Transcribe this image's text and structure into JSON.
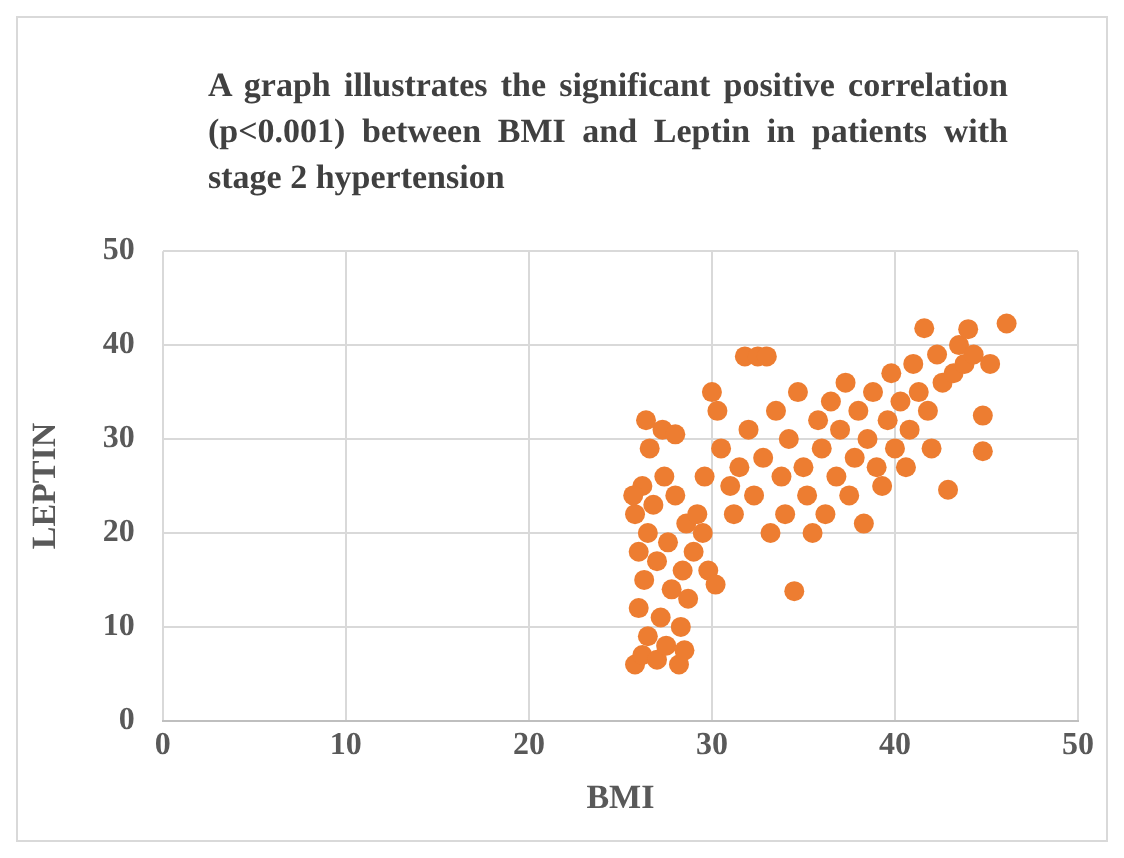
{
  "chart_data": {
    "type": "scatter",
    "title": "A graph illustrates the significant positive correlation (p<0.001) between BMI and Leptin in patients with stage 2 hypertension",
    "xlabel": "BMI",
    "ylabel": "LEPTIN",
    "xlim": [
      0,
      50
    ],
    "xticks": [
      0,
      10,
      20,
      30,
      40,
      50
    ],
    "ylim": [
      0,
      50
    ],
    "yticks": [
      0,
      10,
      20,
      30,
      40,
      50
    ],
    "grid": true,
    "legend": false,
    "marker": "circle",
    "series": [
      {
        "color": "#ed7d31",
        "x": [
          25.8,
          26.2,
          26.5,
          27,
          27.5,
          28.2,
          28.5,
          26,
          26.3,
          27.2,
          27.8,
          28.3,
          28.7,
          26,
          26.5,
          27,
          27.6,
          28.4,
          29,
          25.8,
          26.2,
          26.8,
          27.4,
          28,
          28.6,
          29.2,
          25.7,
          26.6,
          27.3,
          28,
          26.4,
          29.5,
          29.8,
          30.2,
          29.6,
          30,
          30.3,
          30.5,
          31,
          31.2,
          31.5,
          31.8,
          32.5,
          33,
          32,
          32.3,
          32.8,
          33.2,
          33.5,
          33.8,
          34,
          34.2,
          34.5,
          34.7,
          35,
          35.2,
          35.5,
          35.8,
          36,
          36.2,
          36.5,
          36.8,
          37,
          37.3,
          37.5,
          37.8,
          38,
          38.3,
          38.5,
          38.8,
          39,
          39.3,
          39.6,
          39.8,
          40,
          40.3,
          40.6,
          40.8,
          41,
          41.3,
          41.6,
          41.8,
          42,
          42.3,
          42.6,
          42.9,
          43.2,
          43.5,
          43.8,
          44,
          44.3,
          44.8,
          44.8,
          45.2,
          46.1
        ],
        "values": [
          6,
          7,
          9,
          6.5,
          8,
          6,
          7.5,
          12,
          15,
          11,
          14,
          10,
          13,
          18,
          20,
          17,
          19,
          16,
          18,
          22,
          25,
          23,
          26,
          24,
          21,
          22,
          24,
          29,
          31,
          30.5,
          32,
          20,
          16,
          14.5,
          26,
          35,
          33,
          29,
          25,
          22,
          27,
          38.8,
          38.8,
          38.8,
          31,
          24,
          28,
          20,
          33,
          26,
          22,
          30,
          13.8,
          35,
          27,
          24,
          20,
          32,
          29,
          22,
          34,
          26,
          31,
          36,
          24,
          28,
          33,
          21,
          30,
          35,
          27,
          25,
          32,
          37,
          29,
          34,
          27,
          31,
          38,
          35,
          41.8,
          33,
          29,
          39,
          36,
          24.6,
          37,
          40,
          38,
          41.7,
          39,
          32.5,
          28.7,
          38,
          42.3
        ]
      }
    ]
  }
}
